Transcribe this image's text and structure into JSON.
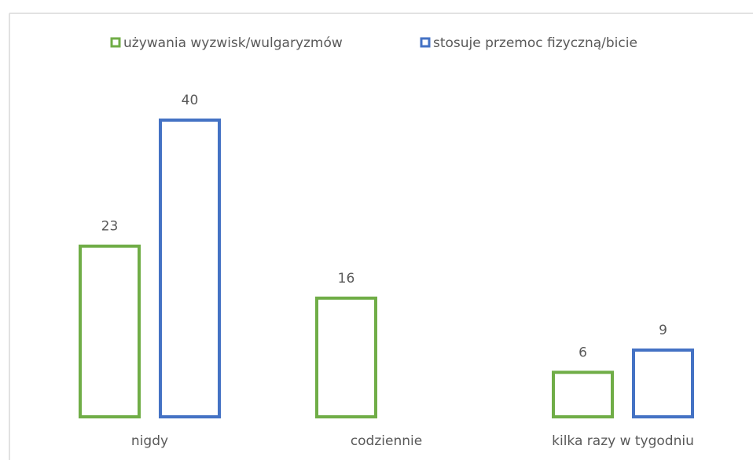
{
  "chart_data": {
    "type": "bar",
    "categories": [
      "nigdy",
      "codziennie",
      "kilka razy w tygodniu"
    ],
    "series": [
      {
        "name": "używania wyzwisk/wulgaryzmów",
        "color": "#70ad47",
        "values": [
          23,
          16,
          6
        ]
      },
      {
        "name": "stosuje przemoc fizyczną/bicie",
        "color": "#4472c4",
        "values": [
          40,
          null,
          9
        ]
      }
    ],
    "legend": "top"
  }
}
